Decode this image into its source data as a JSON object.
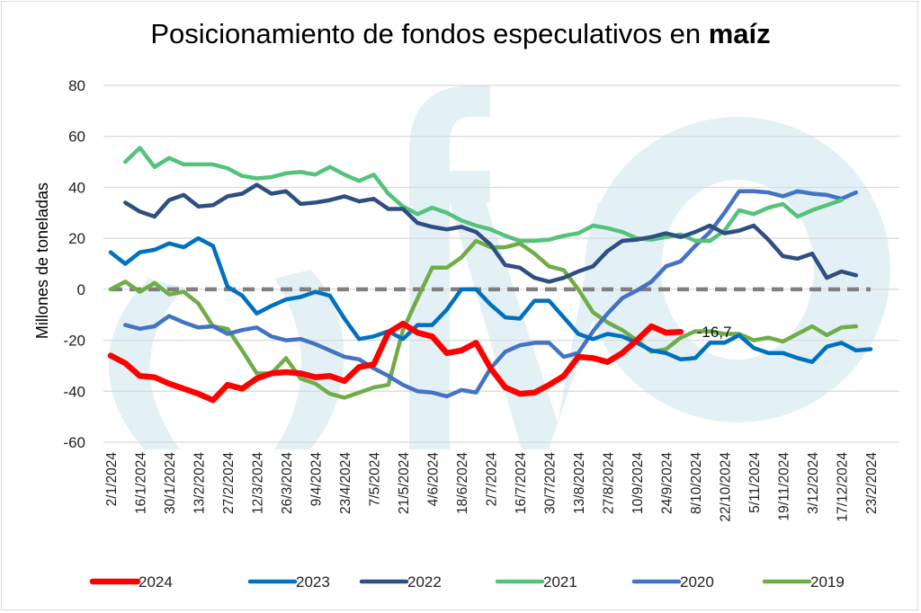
{
  "chart_data": {
    "type": "line",
    "title": "Posicionamiento de fondos especulativos en",
    "title_bold": "maíz",
    "xlabel": "",
    "ylabel": "Millones de toneladas",
    "ylim": [
      -60,
      80
    ],
    "yticks": [
      80,
      60,
      40,
      20,
      0,
      -20,
      -40,
      -60
    ],
    "grid": true,
    "legend_position": "bottom",
    "zero_line": {
      "value": 0,
      "style": "dashed",
      "color": "#808080"
    },
    "x_tick_labels": [
      "2/1/2024",
      "16/1/2024",
      "30/1/2024",
      "13/2/2024",
      "27/2/2024",
      "12/3/2024",
      "26/3/2024",
      "9/4/2024",
      "23/4/2024",
      "7/5/2024",
      "21/5/2024",
      "4/6/2024",
      "18/6/2024",
      "2/7/2024",
      "16/7/2024",
      "30/7/2024",
      "13/8/2024",
      "27/8/2024",
      "10/9/2024",
      "24/9/2024",
      "8/10/2024",
      "22/10/2024",
      "5/11/2024",
      "19/11/2024",
      "3/12/2024",
      "17/12/2024",
      "23/2/2024"
    ],
    "x_points_per_tick": 2,
    "annotation": {
      "text": "-16,7",
      "series": "2024"
    },
    "series": [
      {
        "name": "2024",
        "color": "#ff0000",
        "start_index": 0,
        "values": [
          -26,
          -29,
          -34,
          -34.5,
          -37,
          -39,
          -41,
          -43.5,
          -37.5,
          -39,
          -35,
          -33,
          -32.5,
          -33,
          -34.5,
          -34,
          -36,
          -30.5,
          -29.5,
          -17,
          -13.5,
          -17,
          -18.5,
          -25,
          -24,
          -21,
          -31,
          -38.5,
          -41,
          -40.5,
          -37.5,
          -34,
          -26.5,
          -27,
          -28.5,
          -25,
          -20,
          -14.5,
          -17,
          -16.7
        ]
      },
      {
        "name": "2023",
        "color": "#0070c0",
        "start_index": 0,
        "values": [
          14.5,
          10,
          14.5,
          15.5,
          18,
          16.5,
          20,
          17,
          1,
          -2.5,
          -9.5,
          -6.5,
          -4,
          -3,
          -1,
          -2.5,
          -11.5,
          -19.5,
          -18.5,
          -16.5,
          -19.5,
          -14,
          -14,
          -8,
          0,
          0,
          -6,
          -11,
          -11.5,
          -4.5,
          -4.5,
          -11,
          -17.5,
          -19.5,
          -17.5,
          -18.5,
          -21,
          -24,
          -25,
          -27.5,
          -27,
          -21,
          -21,
          -18,
          -23,
          -25,
          -25,
          -27,
          -28.5,
          -22.5,
          -21,
          -24,
          -23.5
        ]
      },
      {
        "name": "2022",
        "color": "#2e4f7f",
        "start_index": 1,
        "values": [
          34,
          30.5,
          28.5,
          35,
          37,
          32.5,
          33,
          36.5,
          37.5,
          41,
          37.5,
          38.5,
          33.5,
          34,
          35,
          36.5,
          34.5,
          35.5,
          31.5,
          31.5,
          26,
          24.5,
          23.5,
          24.5,
          22.5,
          17.5,
          9.5,
          8.5,
          4.5,
          3,
          4.5,
          7,
          9,
          15,
          19,
          19.5,
          20.5,
          22,
          20.5,
          22.5,
          25,
          22,
          23,
          25,
          19.5,
          13,
          12,
          14,
          4.5,
          7,
          5.5
        ]
      },
      {
        "name": "2021",
        "color": "#55c27b",
        "start_index": 1,
        "values": [
          50,
          55.5,
          48,
          51.5,
          49,
          49,
          49,
          47.5,
          44.5,
          43.5,
          44,
          45.5,
          46,
          45,
          48,
          45,
          42.5,
          45,
          37.5,
          32.5,
          29.5,
          32,
          30,
          27,
          25,
          23.5,
          21,
          19,
          19,
          19.5,
          21,
          22,
          25,
          24,
          22.5,
          20,
          19.5,
          20.5,
          21.5,
          19,
          19,
          23,
          31,
          29.5,
          32,
          33.5,
          28.5,
          31,
          33,
          35
        ]
      },
      {
        "name": "2020",
        "color": "#4472c4",
        "start_index": 1,
        "values": [
          -14,
          -15.5,
          -14.5,
          -10.5,
          -13,
          -15,
          -14.5,
          -17.5,
          -16,
          -15,
          -18.5,
          -20,
          -19.5,
          -21.5,
          -24,
          -26.5,
          -27.5,
          -31,
          -34,
          -37.5,
          -40,
          -40.5,
          -42,
          -39.5,
          -40.5,
          -31,
          -24.5,
          -22,
          -21,
          -21,
          -26.5,
          -25,
          -16.5,
          -9.5,
          -3.5,
          -0.5,
          3,
          9,
          11,
          17,
          22.5,
          30,
          38.5,
          38.5,
          38,
          36.5,
          38.5,
          37.5,
          37,
          35.5,
          38
        ]
      },
      {
        "name": "2019",
        "color": "#70ad47",
        "start_index": 0,
        "values": [
          0,
          3,
          -1,
          2.5,
          -2,
          -1,
          -5.5,
          -14.5,
          -15.5,
          -24,
          -33,
          -33,
          -27,
          -35,
          -37,
          -41,
          -42.5,
          -40.5,
          -38.5,
          -37.5,
          -16,
          -3.5,
          8.5,
          8.5,
          12.5,
          19,
          16.5,
          16.5,
          18,
          14,
          9,
          7.5,
          0,
          -9,
          -13,
          -16,
          -20,
          -24.5,
          -23.5,
          -19,
          -16.5,
          -16.5,
          -17.5,
          -17.5,
          -20,
          -19,
          -20.5,
          -17.5,
          -14.5,
          -18,
          -15,
          -14.5
        ]
      }
    ]
  }
}
